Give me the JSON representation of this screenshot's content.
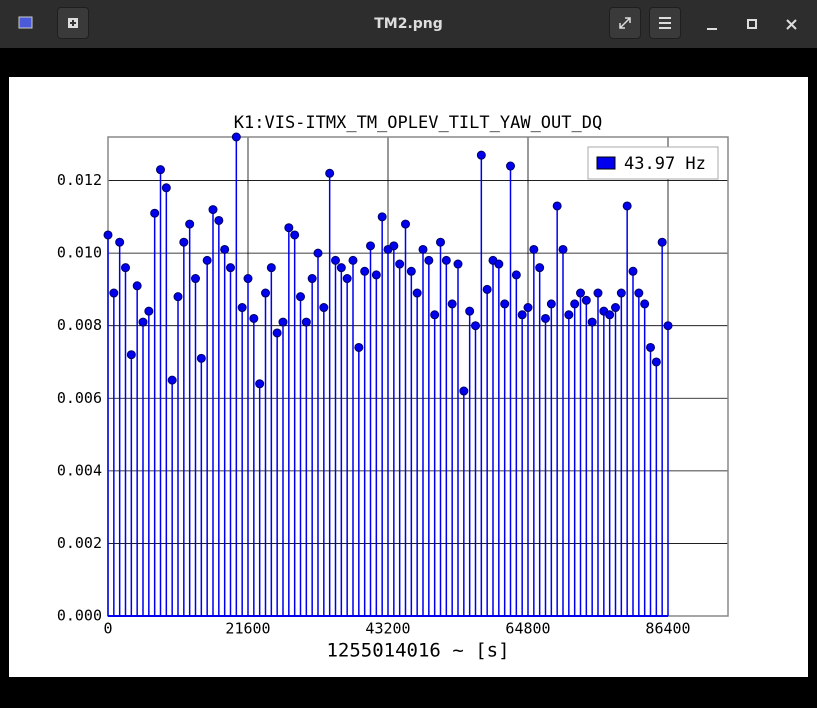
{
  "window": {
    "title": "TM2.png"
  },
  "chart_data": {
    "type": "stem",
    "title": "K1:VIS-ITMX_TM_OPLEV_TILT_YAW_OUT_DQ",
    "xlabel": "1255014016 ~ [s]",
    "x": [
      0,
      900,
      1800,
      2700,
      3600,
      4500,
      5400,
      6300,
      7200,
      8100,
      9000,
      9900,
      10800,
      11700,
      12600,
      13500,
      14400,
      15300,
      16200,
      17100,
      18000,
      18900,
      19800,
      20700,
      21600,
      22500,
      23400,
      24300,
      25200,
      26100,
      27000,
      27900,
      28800,
      29700,
      30600,
      31500,
      32400,
      33300,
      34200,
      35100,
      36000,
      36900,
      37800,
      38700,
      39600,
      40500,
      41400,
      42300,
      43200,
      44100,
      45000,
      45900,
      46800,
      47700,
      48600,
      49500,
      50400,
      51300,
      52200,
      53100,
      54000,
      54900,
      55800,
      56700,
      57600,
      58500,
      59400,
      60300,
      61200,
      62100,
      63000,
      63900,
      64800,
      65700,
      66600,
      67500,
      68400,
      69300,
      70200,
      71100,
      72000,
      72900,
      73800,
      74700,
      75600,
      76500,
      77400,
      78300,
      79200,
      80100,
      81000,
      81900,
      82800,
      83700,
      84600,
      85500,
      86400
    ],
    "series": [
      {
        "name": "43.97 Hz",
        "color": "#0000ee",
        "values": [
          0.0105,
          0.0089,
          0.0103,
          0.0096,
          0.0072,
          0.0091,
          0.0081,
          0.0084,
          0.0111,
          0.0123,
          0.0118,
          0.0065,
          0.0088,
          0.0103,
          0.0108,
          0.0093,
          0.0071,
          0.0098,
          0.0112,
          0.0109,
          0.0101,
          0.0096,
          0.0132,
          0.0085,
          0.0093,
          0.0082,
          0.0064,
          0.0089,
          0.0096,
          0.0078,
          0.0081,
          0.0107,
          0.0105,
          0.0088,
          0.0081,
          0.0093,
          0.01,
          0.0085,
          0.0122,
          0.0098,
          0.0096,
          0.0093,
          0.0098,
          0.0074,
          0.0095,
          0.0102,
          0.0094,
          0.011,
          0.0101,
          0.0102,
          0.0097,
          0.0108,
          0.0095,
          0.0089,
          0.0101,
          0.0098,
          0.0083,
          0.0103,
          0.0098,
          0.0086,
          0.0097,
          0.0062,
          0.0084,
          0.008,
          0.0127,
          0.009,
          0.0098,
          0.0097,
          0.0086,
          0.0124,
          0.0094,
          0.0083,
          0.0085,
          0.0101,
          0.0096,
          0.0082,
          0.0086,
          0.0113,
          0.0101,
          0.0083,
          0.0086,
          0.0089,
          0.0087,
          0.0081,
          0.0089,
          0.0084,
          0.0083,
          0.0085,
          0.0089,
          0.0113,
          0.0095,
          0.0089,
          0.0086,
          0.0074,
          0.007,
          0.0103,
          0.008
        ]
      }
    ],
    "xlim": [
      0,
      95657
    ],
    "xticks": [
      0,
      21600,
      43200,
      64800,
      86400
    ],
    "ylim": [
      0,
      0.0132
    ],
    "yticks": [
      {
        "value": 0,
        "label": "0.000"
      },
      0.002,
      0.004,
      0.006,
      0.008,
      {
        "value": 0.01,
        "label": "0.010"
      },
      0.012
    ],
    "grid": true,
    "legend": "upper-right"
  }
}
